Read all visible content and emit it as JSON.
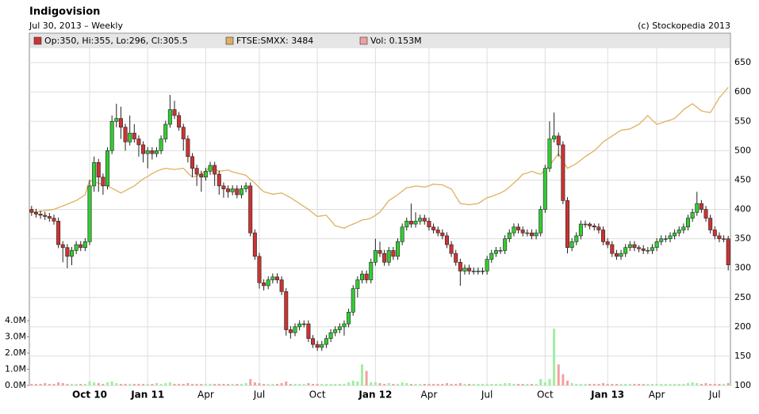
{
  "chart_data": {
    "type": "candlestick",
    "title": "Indigovision",
    "subtitle": "Jul 30, 2013 – Weekly",
    "source": "(c) Stockopedia 2013",
    "name": "Op:350, Hi:355, Lo:296, Cl:305.5",
    "up_color": "#33cc33",
    "down_color": "#cc3333",
    "categories": [
      null,
      null,
      null,
      null,
      null,
      null,
      null,
      null,
      null,
      null,
      null,
      null,
      null,
      "Oct 10",
      null,
      null,
      null,
      null,
      null,
      null,
      null,
      null,
      null,
      null,
      null,
      null,
      "Jan 11",
      null,
      null,
      null,
      null,
      null,
      null,
      null,
      null,
      null,
      null,
      null,
      null,
      "Apr",
      null,
      null,
      null,
      null,
      null,
      null,
      null,
      null,
      null,
      null,
      null,
      "Jul",
      null,
      null,
      null,
      null,
      null,
      null,
      null,
      null,
      null,
      null,
      null,
      null,
      "Oct",
      null,
      null,
      null,
      null,
      null,
      null,
      null,
      null,
      null,
      null,
      null,
      null,
      "Jan 12",
      null,
      null,
      null,
      null,
      null,
      null,
      null,
      null,
      null,
      null,
      null,
      "Apr",
      null,
      null,
      null,
      null,
      null,
      null,
      null,
      null,
      null,
      null,
      null,
      null,
      "Jul",
      null,
      null,
      null,
      null,
      null,
      null,
      null,
      null,
      null,
      null,
      null,
      null,
      "Oct",
      null,
      null,
      null,
      null,
      null,
      null,
      null,
      null,
      null,
      null,
      null,
      null,
      null,
      "Jan 13",
      null,
      null,
      null,
      null,
      null,
      null,
      null,
      null,
      null,
      null,
      "Apr",
      null,
      null,
      null,
      null,
      null,
      null,
      null,
      null,
      null,
      null,
      null,
      null,
      "Jul",
      null,
      null,
      null
    ],
    "open": [
      400,
      395,
      392,
      390,
      388,
      385,
      380,
      340,
      335,
      320,
      330,
      340,
      335,
      345,
      440,
      480,
      455,
      440,
      500,
      550,
      555,
      540,
      515,
      530,
      520,
      510,
      495,
      500,
      495,
      500,
      520,
      545,
      570,
      560,
      540,
      520,
      490,
      470,
      460,
      455,
      465,
      475,
      460,
      440,
      435,
      430,
      435,
      425,
      435,
      440,
      360,
      320,
      275,
      270,
      280,
      285,
      280,
      260,
      195,
      190,
      200,
      205,
      205,
      180,
      170,
      165,
      170,
      180,
      190,
      195,
      200,
      205,
      225,
      265,
      280,
      290,
      280,
      310,
      330,
      325,
      310,
      330,
      320,
      345,
      370,
      380,
      375,
      380,
      385,
      380,
      370,
      365,
      360,
      355,
      340,
      325,
      310,
      295,
      300,
      295,
      295,
      295,
      295,
      315,
      325,
      330,
      330,
      350,
      360,
      370,
      365,
      360,
      360,
      355,
      360,
      400,
      470,
      520,
      525,
      510,
      415,
      335,
      345,
      355,
      375,
      375,
      372,
      370,
      365,
      345,
      340,
      325,
      320,
      325,
      335,
      340,
      335,
      333,
      330,
      330,
      335,
      345,
      350,
      350,
      355,
      360,
      365,
      370,
      385,
      395,
      410,
      400,
      385,
      365,
      355,
      350,
      350
    ],
    "high": [
      406,
      401,
      398,
      396,
      394,
      391,
      386,
      346,
      341,
      336,
      346,
      346,
      351,
      450,
      490,
      486,
      461,
      506,
      560,
      580,
      575,
      546,
      560,
      545,
      526,
      516,
      506,
      506,
      506,
      526,
      551,
      595,
      585,
      566,
      546,
      526,
      496,
      476,
      466,
      471,
      481,
      481,
      466,
      446,
      441,
      441,
      441,
      441,
      446,
      446,
      366,
      326,
      281,
      286,
      291,
      291,
      286,
      266,
      201,
      206,
      211,
      211,
      211,
      186,
      176,
      176,
      186,
      196,
      201,
      206,
      211,
      231,
      271,
      286,
      296,
      296,
      316,
      350,
      345,
      331,
      336,
      336,
      351,
      376,
      386,
      410,
      395,
      391,
      391,
      386,
      376,
      371,
      366,
      361,
      346,
      331,
      316,
      306,
      306,
      301,
      301,
      301,
      321,
      331,
      336,
      336,
      356,
      366,
      376,
      376,
      371,
      366,
      366,
      366,
      406,
      476,
      550,
      565,
      531,
      516,
      421,
      351,
      361,
      381,
      381,
      378,
      376,
      376,
      371,
      351,
      346,
      331,
      331,
      341,
      346,
      346,
      339,
      339,
      336,
      341,
      351,
      356,
      356,
      361,
      366,
      371,
      376,
      391,
      401,
      430,
      416,
      406,
      391,
      371,
      361,
      356,
      355
    ],
    "low": [
      389,
      386,
      384,
      382,
      379,
      374,
      334,
      310,
      300,
      305,
      324,
      329,
      329,
      339,
      430,
      430,
      425,
      434,
      494,
      540,
      520,
      500,
      509,
      514,
      490,
      480,
      470,
      485,
      489,
      494,
      514,
      539,
      554,
      534,
      500,
      480,
      455,
      440,
      430,
      449,
      459,
      440,
      425,
      420,
      420,
      424,
      419,
      419,
      429,
      354,
      314,
      265,
      262,
      264,
      274,
      274,
      254,
      185,
      180,
      184,
      194,
      199,
      174,
      164,
      159,
      159,
      164,
      174,
      184,
      189,
      185,
      199,
      219,
      250,
      274,
      274,
      274,
      304,
      319,
      304,
      304,
      314,
      314,
      339,
      364,
      369,
      369,
      374,
      374,
      364,
      359,
      354,
      349,
      334,
      319,
      304,
      270,
      289,
      289,
      289,
      289,
      289,
      289,
      309,
      319,
      324,
      324,
      344,
      354,
      359,
      354,
      354,
      349,
      349,
      354,
      394,
      464,
      514,
      490,
      409,
      325,
      329,
      339,
      349,
      369,
      366,
      364,
      359,
      339,
      334,
      319,
      314,
      314,
      319,
      329,
      329,
      327,
      324,
      324,
      324,
      329,
      339,
      344,
      344,
      349,
      354,
      359,
      364,
      379,
      389,
      394,
      379,
      359,
      349,
      344,
      344,
      296
    ],
    "close": [
      395,
      392,
      390,
      388,
      385,
      380,
      340,
      335,
      320,
      330,
      340,
      335,
      345,
      440,
      480,
      455,
      440,
      500,
      550,
      555,
      540,
      515,
      530,
      520,
      510,
      495,
      500,
      495,
      500,
      520,
      545,
      570,
      560,
      540,
      520,
      490,
      470,
      460,
      455,
      465,
      475,
      460,
      440,
      435,
      430,
      435,
      425,
      435,
      440,
      360,
      320,
      275,
      270,
      280,
      285,
      280,
      260,
      195,
      190,
      200,
      205,
      205,
      180,
      170,
      165,
      170,
      180,
      190,
      195,
      200,
      205,
      225,
      265,
      280,
      290,
      280,
      310,
      330,
      325,
      310,
      330,
      320,
      345,
      370,
      380,
      375,
      380,
      385,
      380,
      370,
      365,
      360,
      355,
      340,
      325,
      310,
      295,
      300,
      295,
      295,
      295,
      295,
      315,
      325,
      330,
      330,
      350,
      360,
      370,
      365,
      360,
      360,
      355,
      360,
      400,
      470,
      520,
      525,
      510,
      415,
      335,
      345,
      355,
      375,
      375,
      372,
      370,
      365,
      345,
      340,
      325,
      320,
      325,
      335,
      340,
      335,
      333,
      330,
      330,
      335,
      345,
      350,
      350,
      355,
      360,
      365,
      370,
      385,
      395,
      410,
      400,
      385,
      365,
      355,
      350,
      350,
      305.5
    ],
    "series": [
      {
        "name": "FTSE:SMXX: 3484",
        "color": "#e0b060",
        "values": [
          395,
          396,
          397,
          398,
          399,
          400,
          403,
          406,
          409,
          412,
          415,
          420,
          425,
          450,
          447,
          445,
          442,
          440,
          436,
          432,
          428,
          432,
          436,
          440,
          446,
          452,
          456,
          461,
          465,
          468,
          470,
          469,
          468,
          469,
          470,
          462,
          455,
          457,
          460,
          466,
          472,
          468,
          465,
          466,
          467,
          464,
          462,
          460,
          458,
          451,
          445,
          437,
          430,
          428,
          426,
          427,
          428,
          424,
          420,
          415,
          410,
          405,
          400,
          394,
          388,
          389,
          390,
          381,
          372,
          370,
          368,
          372,
          375,
          378,
          382,
          383,
          385,
          390,
          395,
          405,
          415,
          420,
          425,
          431,
          437,
          438,
          440,
          439,
          438,
          440,
          443,
          442,
          442,
          438,
          435,
          422,
          410,
          409,
          408,
          409,
          410,
          415,
          420,
          422,
          425,
          428,
          432,
          438,
          445,
          452,
          460,
          462,
          465,
          462,
          460,
          467,
          475,
          485,
          495,
          482,
          470,
          474,
          478,
          484,
          490,
          495,
          500,
          507,
          515,
          520,
          525,
          530,
          535,
          536,
          537,
          541,
          545,
          552,
          560,
          552,
          545,
          547,
          550,
          552,
          555,
          562,
          570,
          575,
          580,
          574,
          568,
          566,
          565,
          577,
          590,
          599,
          608
        ]
      }
    ],
    "volume": {
      "name": "Vol: 0.153M",
      "color": "#f0a0a0",
      "up_color": "#a0eea0",
      "down_color": "#f4a0a0",
      "values": [
        0.1,
        0.1,
        0.1,
        0.15,
        0.1,
        0.1,
        0.2,
        0.15,
        0.1,
        0.1,
        0.1,
        0.1,
        0.1,
        0.25,
        0.2,
        0.15,
        0.1,
        0.2,
        0.25,
        0.15,
        0.1,
        0.1,
        0.1,
        0.1,
        0.1,
        0.1,
        0.1,
        0.1,
        0.15,
        0.1,
        0.15,
        0.2,
        0.1,
        0.1,
        0.1,
        0.15,
        0.1,
        0.1,
        0.1,
        0.1,
        0.1,
        0.1,
        0.1,
        0.1,
        0.1,
        0.1,
        0.1,
        0.1,
        0.15,
        0.4,
        0.2,
        0.15,
        0.1,
        0.1,
        0.1,
        0.1,
        0.15,
        0.25,
        0.1,
        0.1,
        0.1,
        0.1,
        0.15,
        0.1,
        0.1,
        0.1,
        0.1,
        0.1,
        0.1,
        0.1,
        0.1,
        0.2,
        0.3,
        0.25,
        1.3,
        0.9,
        0.2,
        0.2,
        0.15,
        0.1,
        0.15,
        0.1,
        0.1,
        0.2,
        0.15,
        0.1,
        0.1,
        0.1,
        0.1,
        0.1,
        0.1,
        0.1,
        0.1,
        0.15,
        0.1,
        0.1,
        0.15,
        0.1,
        0.1,
        0.1,
        0.1,
        0.1,
        0.1,
        0.1,
        0.1,
        0.1,
        0.15,
        0.15,
        0.1,
        0.1,
        0.1,
        0.1,
        0.1,
        0.1,
        0.4,
        0.2,
        0.4,
        3.5,
        1.3,
        0.7,
        0.3,
        0.15,
        0.1,
        0.1,
        0.1,
        0.1,
        0.1,
        0.1,
        0.15,
        0.1,
        0.1,
        0.1,
        0.1,
        0.1,
        0.1,
        0.1,
        0.1,
        0.1,
        0.1,
        0.1,
        0.1,
        0.1,
        0.1,
        0.1,
        0.1,
        0.1,
        0.1,
        0.15,
        0.2,
        0.15,
        0.1,
        0.15,
        0.1,
        0.1,
        0.1,
        0.1,
        0.153
      ],
      "ylim": [
        0,
        4
      ],
      "yticks": [
        {
          "value": 0,
          "label": "0.0M"
        },
        {
          "value": 1,
          "label": "1.0M"
        },
        {
          "value": 2,
          "label": "2.0M"
        },
        {
          "value": 3,
          "label": "3.0M"
        },
        {
          "value": 4,
          "label": "4.0M"
        }
      ]
    },
    "ylim": [
      100,
      692
    ],
    "yticks": [
      100,
      150,
      200,
      250,
      300,
      350,
      400,
      450,
      500,
      550,
      600,
      650
    ],
    "grid": true
  }
}
